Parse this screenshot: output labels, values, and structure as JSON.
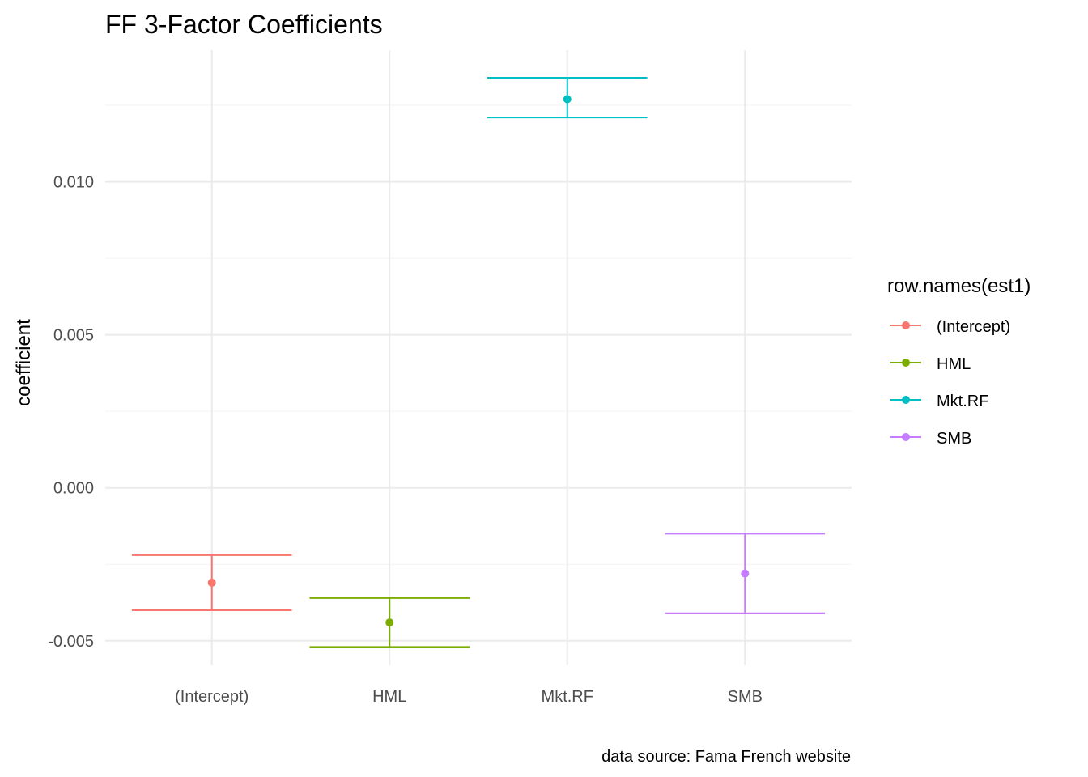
{
  "chart_data": {
    "type": "errorbar",
    "title": "FF 3-Factor Coefficients",
    "xlabel": "",
    "ylabel": "coefficient",
    "caption": "data source: Fama French website",
    "categories": [
      "(Intercept)",
      "HML",
      "Mkt.RF",
      "SMB"
    ],
    "ylim": [
      -0.0058,
      0.0143
    ],
    "y_ticks": [
      -0.005,
      0.0,
      0.005,
      0.01
    ],
    "y_tick_labels": [
      "-0.005",
      "0.000",
      "0.005",
      "0.010"
    ],
    "y_minor_ticks": [
      -0.0025,
      0.0025,
      0.0075,
      0.0125
    ],
    "grid": true,
    "legend": {
      "title": "row.names(est1)",
      "position": "right"
    },
    "series": [
      {
        "name": "(Intercept)",
        "color": "#F8766D",
        "estimate": -0.0031,
        "lower": -0.004,
        "upper": -0.0022
      },
      {
        "name": "HML",
        "color": "#7CAE00",
        "estimate": -0.0044,
        "lower": -0.0052,
        "upper": -0.0036
      },
      {
        "name": "Mkt.RF",
        "color": "#00BFC4",
        "estimate": 0.0127,
        "lower": 0.0121,
        "upper": 0.0134
      },
      {
        "name": "SMB",
        "color": "#C77CFF",
        "estimate": -0.0028,
        "lower": -0.0041,
        "upper": -0.0015
      }
    ]
  }
}
